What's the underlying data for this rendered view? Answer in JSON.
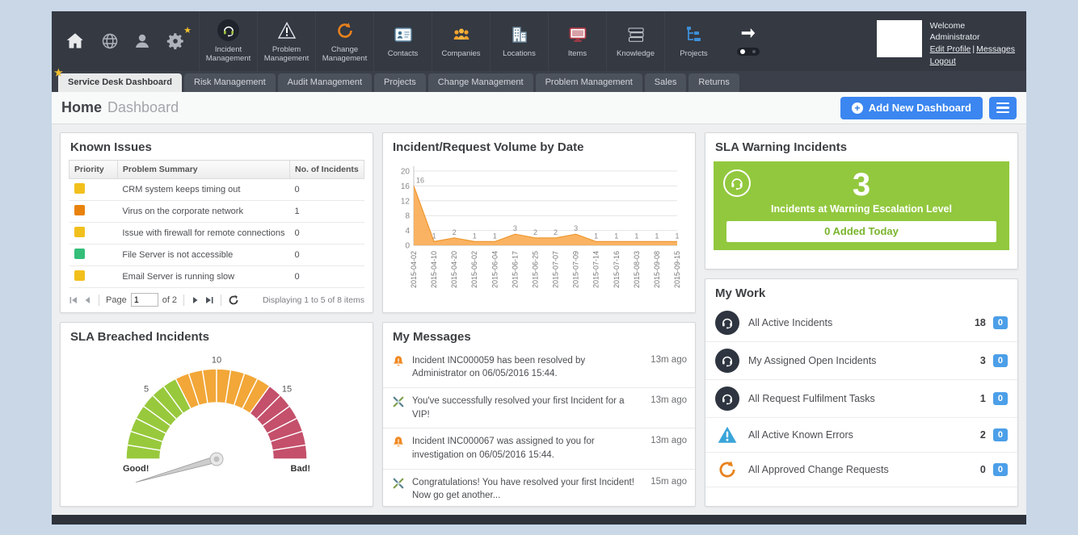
{
  "top_nav": {
    "quick_icons": [
      "home-icon",
      "globe-icon",
      "user-icon",
      "gear-icon"
    ],
    "modules": [
      {
        "label": "Incident Management",
        "icon": "incident-icon"
      },
      {
        "label": "Problem Management",
        "icon": "problem-icon"
      },
      {
        "label": "Change Management",
        "icon": "change-icon"
      },
      {
        "label": "Contacts",
        "icon": "contacts-icon"
      },
      {
        "label": "Companies",
        "icon": "companies-icon"
      },
      {
        "label": "Locations",
        "icon": "locations-icon"
      },
      {
        "label": "Items",
        "icon": "items-icon"
      },
      {
        "label": "Knowledge",
        "icon": "knowledge-icon"
      },
      {
        "label": "Projects",
        "icon": "projects-icon"
      }
    ],
    "user": {
      "welcome": "Welcome",
      "name": "Administrator",
      "edit_profile": "Edit Profile",
      "separator": "|",
      "messages": "Messages",
      "logout": "Logout"
    }
  },
  "icons": {
    "favorite_star": "★",
    "add_plus": "+"
  },
  "tabs": [
    {
      "label": "Service Desk Dashboard",
      "active": true
    },
    {
      "label": "Risk Management",
      "active": false
    },
    {
      "label": "Audit Management",
      "active": false
    },
    {
      "label": "Projects",
      "active": false
    },
    {
      "label": "Change Management",
      "active": false
    },
    {
      "label": "Problem Management",
      "active": false
    },
    {
      "label": "Sales",
      "active": false
    },
    {
      "label": "Returns",
      "active": false
    }
  ],
  "header": {
    "title": "Home",
    "subtitle": "Dashboard",
    "add_button": "Add New Dashboard"
  },
  "known_issues": {
    "title": "Known Issues",
    "columns": [
      "Priority",
      "Problem Summary",
      "No. of Incidents"
    ],
    "rows": [
      {
        "priority_color": "#F2C01D",
        "summary": "CRM system keeps timing out",
        "incidents": "0"
      },
      {
        "priority_color": "#E8820C",
        "summary": "Virus on the corporate network",
        "incidents": "1"
      },
      {
        "priority_color": "#F2C01D",
        "summary": "Issue with firewall for remote connections",
        "incidents": "0"
      },
      {
        "priority_color": "#34BE79",
        "summary": "File Server is not accessible",
        "incidents": "0"
      },
      {
        "priority_color": "#F2C01D",
        "summary": "Email Server is running slow",
        "incidents": "0"
      }
    ],
    "pager": {
      "page_label": "Page",
      "page_value": "1",
      "of_label": "of 2",
      "displaying": "Displaying 1 to 5 of 8 items"
    }
  },
  "sla_warning": {
    "title": "SLA Warning Incidents",
    "count": "3",
    "caption": "Incidents at Warning Escalation Level",
    "added_today": "0 Added Today",
    "panel_color": "#92C83E"
  },
  "my_work": {
    "title": "My Work",
    "items": [
      {
        "icon": "headset-icon",
        "label": "All Active Incidents",
        "count": "18",
        "badge": "0"
      },
      {
        "icon": "headset-icon",
        "label": "My Assigned Open Incidents",
        "count": "3",
        "badge": "0"
      },
      {
        "icon": "headset-icon",
        "label": "All Request Fulfilment Tasks",
        "count": "1",
        "badge": "0"
      },
      {
        "icon": "warning-icon",
        "label": "All Active Known Errors",
        "count": "2",
        "badge": "0"
      },
      {
        "icon": "change-icon",
        "label": "All Approved Change Requests",
        "count": "0",
        "badge": "0"
      }
    ]
  },
  "my_messages": {
    "title": "My Messages",
    "items": [
      {
        "icon": "alert-icon",
        "text": "Incident INC000059 has been resolved by Administrator on 06/05/2016 15:44.",
        "time": "13m ago"
      },
      {
        "icon": "achievement-icon",
        "text": "You've successfully resolved your first Incident for a VIP!",
        "time": "13m ago"
      },
      {
        "icon": "alert-icon",
        "text": "Incident INC000067 was assigned to you for investigation on 06/05/2016 15:44.",
        "time": "13m ago"
      },
      {
        "icon": "achievement-icon",
        "text": "Congratulations! You have resolved your first Incident! Now go get another...",
        "time": "15m ago"
      }
    ]
  },
  "chart_data": [
    {
      "type": "area",
      "title": "Incident/Request Volume by Date",
      "x": [
        "2015-04-02",
        "2015-04-10",
        "2015-04-20",
        "2015-06-02",
        "2015-06-04",
        "2015-06-17",
        "2015-06-25",
        "2015-07-07",
        "2015-07-09",
        "2015-07-14",
        "2015-07-16",
        "2015-08-03",
        "2015-09-08",
        "2015-09-15"
      ],
      "values": [
        16,
        1,
        2,
        1,
        1,
        3,
        2,
        2,
        3,
        1,
        1,
        1,
        1,
        1
      ],
      "ylim": [
        0,
        20
      ],
      "yticks": [
        0,
        4,
        8,
        12,
        16,
        20
      ],
      "color": "#F9A84C",
      "line_color": "#EE9730",
      "grid": true,
      "xlabel": "",
      "ylabel": ""
    },
    {
      "type": "gauge",
      "title": "SLA Breached Incidents",
      "min": 0,
      "max": 20,
      "ticks": [
        5,
        10,
        15
      ],
      "segments": [
        {
          "from": 0,
          "to": 7,
          "color": "#98C93C"
        },
        {
          "from": 7,
          "to": 14,
          "color": "#F2A738"
        },
        {
          "from": 14,
          "to": 20,
          "color": "#C4506B"
        }
      ],
      "value": 0,
      "left_label": "Good!",
      "right_label": "Bad!"
    }
  ],
  "colors": {
    "accent_blue": "#3B86F0",
    "badge_blue": "#4C9FE8",
    "nav_dark": "#343942"
  }
}
